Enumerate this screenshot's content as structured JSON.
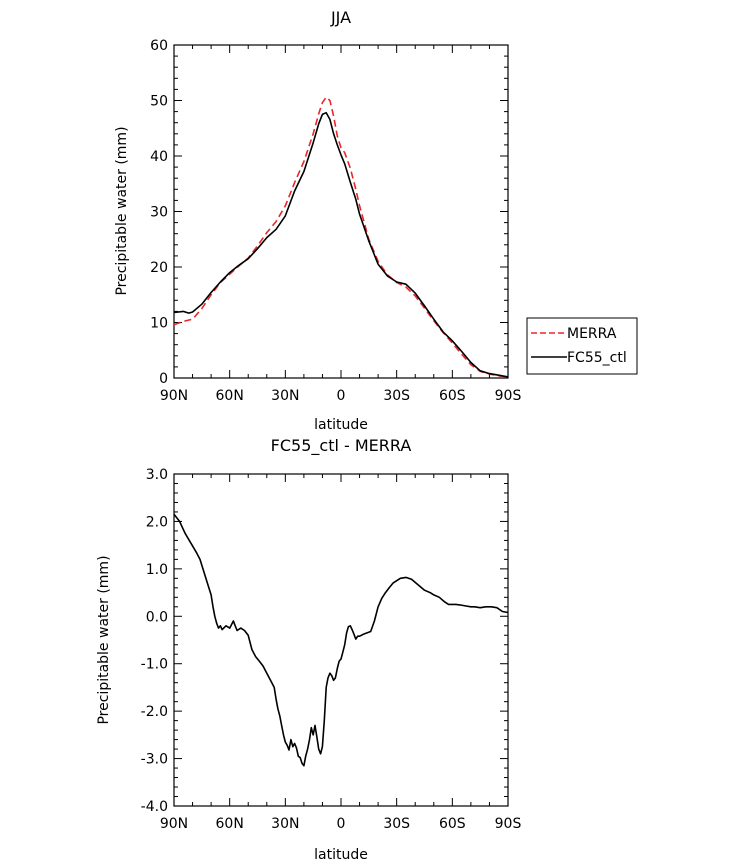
{
  "chart_data": [
    {
      "type": "line",
      "title": "JJA",
      "xlabel": "latitude",
      "ylabel": "Precipitable water (mm)",
      "xlim": [
        90,
        -90
      ],
      "ylim": [
        0,
        60
      ],
      "x_ticks": [
        90,
        60,
        30,
        0,
        -30,
        -60,
        -90
      ],
      "x_tick_labels": [
        "90N",
        "60N",
        "30N",
        "0",
        "30S",
        "60S",
        "90S"
      ],
      "y_ticks": [
        0,
        10,
        20,
        30,
        40,
        50,
        60
      ],
      "y_tick_labels": [
        "0",
        "10",
        "20",
        "30",
        "40",
        "50",
        "60"
      ],
      "grid": false,
      "legend_position": "right",
      "series": [
        {
          "name": "MERRA",
          "color": "#e8262b",
          "dash": "dashed",
          "x": [
            90,
            85,
            80,
            75,
            70,
            65,
            60,
            55,
            50,
            45,
            40,
            35,
            30,
            25,
            20,
            15,
            12,
            10,
            8,
            6,
            4,
            2,
            0,
            -2,
            -5,
            -8,
            -10,
            -15,
            -20,
            -25,
            -30,
            -35,
            -40,
            -45,
            -50,
            -55,
            -60,
            -65,
            -70,
            -75,
            -80,
            -85,
            -90
          ],
          "values": [
            9.6,
            10.2,
            10.6,
            12.5,
            15.0,
            17.2,
            18.7,
            20.2,
            21.6,
            23.8,
            26.2,
            28.2,
            31.0,
            35.2,
            39.0,
            44.0,
            47.6,
            49.6,
            50.6,
            50.0,
            47.2,
            43.6,
            41.5,
            40.6,
            37.8,
            34.0,
            31.0,
            25.0,
            21.0,
            18.6,
            17.2,
            16.4,
            14.8,
            12.6,
            10.3,
            8.2,
            6.3,
            4.3,
            2.4,
            1.2,
            0.7,
            0.4,
            0.2
          ]
        },
        {
          "name": "FC55_ctl",
          "color": "#000000",
          "dash": "solid",
          "x": [
            90,
            85,
            82,
            80,
            75,
            70,
            65,
            60,
            55,
            50,
            45,
            40,
            35,
            30,
            25,
            20,
            15,
            12,
            10,
            8,
            6,
            4,
            2,
            0,
            -2,
            -5,
            -8,
            -10,
            -15,
            -20,
            -25,
            -30,
            -35,
            -40,
            -45,
            -50,
            -55,
            -60,
            -65,
            -70,
            -75,
            -80,
            -85,
            -90
          ],
          "values": [
            11.8,
            12.0,
            11.7,
            11.9,
            13.3,
            15.4,
            17.3,
            19.0,
            20.3,
            21.5,
            23.3,
            25.3,
            26.8,
            29.2,
            33.7,
            37.2,
            42.4,
            45.8,
            47.5,
            47.8,
            46.6,
            44.0,
            42.0,
            40.2,
            38.6,
            35.3,
            32.2,
            29.5,
            24.7,
            20.5,
            18.4,
            17.3,
            16.9,
            15.3,
            13.0,
            10.6,
            8.3,
            6.7,
            4.8,
            2.8,
            1.3,
            0.8,
            0.5,
            0.2
          ]
        }
      ]
    },
    {
      "type": "line",
      "title": "FC55_ctl - MERRA",
      "xlabel": "latitude",
      "ylabel": "Precipitable water (mm)",
      "xlim": [
        90,
        -90
      ],
      "ylim": [
        -4,
        3
      ],
      "x_ticks": [
        90,
        60,
        30,
        0,
        -30,
        -60,
        -90
      ],
      "x_tick_labels": [
        "90N",
        "60N",
        "30N",
        "0",
        "30S",
        "60S",
        "90S"
      ],
      "y_ticks": [
        -4,
        -3,
        -2,
        -1,
        0,
        1,
        2,
        3
      ],
      "y_tick_labels": [
        "-4.0",
        "-3.0",
        "-2.0",
        "-1.0",
        "0.0",
        "1.0",
        "2.0",
        "3.0"
      ],
      "grid": false,
      "series": [
        {
          "name": "",
          "color": "#000000",
          "dash": "solid",
          "x": [
            90,
            87,
            84,
            81,
            78,
            76,
            74,
            72,
            70,
            69,
            68,
            67,
            66,
            65,
            64,
            62,
            60,
            58,
            57,
            56,
            54,
            52,
            50,
            48,
            46,
            44,
            42,
            40,
            38,
            36,
            35,
            34,
            33,
            32,
            31,
            30,
            29,
            28,
            27,
            26,
            25,
            24,
            23,
            22,
            21,
            20,
            19,
            18,
            17,
            16,
            15,
            14,
            13,
            12,
            11,
            10,
            9,
            8,
            7,
            6,
            5,
            4,
            3,
            2,
            1,
            0,
            -1,
            -2,
            -3,
            -4,
            -5,
            -6,
            -7,
            -8,
            -9,
            -10,
            -12,
            -14,
            -16,
            -18,
            -20,
            -22,
            -24,
            -26,
            -28,
            -30,
            -32,
            -35,
            -38,
            -42,
            -45,
            -48,
            -50,
            -53,
            -56,
            -58,
            -60,
            -62,
            -64,
            -67,
            -70,
            -72,
            -75,
            -78,
            -81,
            -84,
            -87,
            -90
          ],
          "values": [
            2.15,
            2.0,
            1.75,
            1.55,
            1.35,
            1.2,
            0.95,
            0.7,
            0.45,
            0.2,
            0.0,
            -0.15,
            -0.25,
            -0.2,
            -0.28,
            -0.2,
            -0.25,
            -0.1,
            -0.2,
            -0.3,
            -0.25,
            -0.3,
            -0.4,
            -0.7,
            -0.85,
            -0.95,
            -1.05,
            -1.2,
            -1.35,
            -1.5,
            -1.75,
            -1.95,
            -2.1,
            -2.3,
            -2.5,
            -2.65,
            -2.72,
            -2.82,
            -2.6,
            -2.75,
            -2.68,
            -2.78,
            -2.95,
            -2.98,
            -3.1,
            -3.15,
            -2.95,
            -2.8,
            -2.6,
            -2.35,
            -2.5,
            -2.3,
            -2.55,
            -2.8,
            -2.9,
            -2.75,
            -2.2,
            -1.5,
            -1.3,
            -1.2,
            -1.25,
            -1.35,
            -1.3,
            -1.1,
            -0.95,
            -0.9,
            -0.75,
            -0.6,
            -0.35,
            -0.22,
            -0.2,
            -0.28,
            -0.38,
            -0.48,
            -0.42,
            -0.42,
            -0.38,
            -0.35,
            -0.32,
            -0.1,
            0.2,
            0.38,
            0.5,
            0.6,
            0.7,
            0.75,
            0.8,
            0.82,
            0.78,
            0.65,
            0.55,
            0.5,
            0.45,
            0.4,
            0.3,
            0.25,
            0.25,
            0.25,
            0.24,
            0.22,
            0.2,
            0.2,
            0.18,
            0.2,
            0.2,
            0.18,
            0.1,
            0.08
          ]
        }
      ]
    }
  ]
}
